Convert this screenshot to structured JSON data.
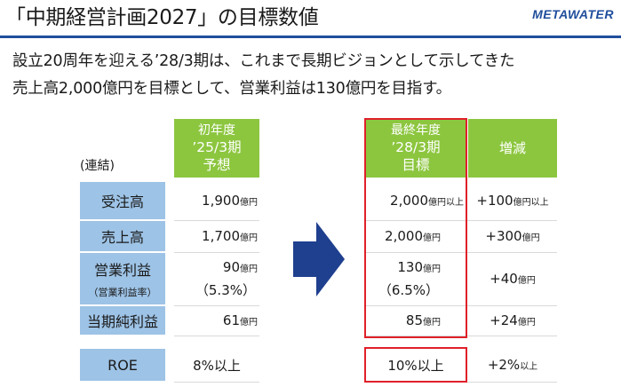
{
  "header": {
    "title": "「中期経営計画2027」の目標数値",
    "logo_text": "METAWATER",
    "rule_color": "#1f4e9c"
  },
  "lead": {
    "line1": "設立20周年を迎える’28/3期は、これまで長期ビジョンとして示してきた",
    "line2": "売上高2,000億円を目標として、営業利益は130億円を目指す。"
  },
  "table": {
    "consolidated_label": "(連結)",
    "col_initial": {
      "line1": "初年度",
      "line2": "’25/3期",
      "line3": "予想"
    },
    "col_final": {
      "line1": "最終年度",
      "line2": "’28/3期",
      "line3": "目標"
    },
    "col_change": "増減",
    "rows": [
      {
        "label": "受注高",
        "initial": "1,900",
        "initial_unit": "億円",
        "final": "2,000",
        "final_unit": "億円以上",
        "change": "+100",
        "change_unit": "億円以上"
      },
      {
        "label": "売上高",
        "initial": "1,700",
        "initial_unit": "億円",
        "final": "2,000",
        "final_unit": "億円",
        "change": "+300",
        "change_unit": "億円"
      },
      {
        "label": "営業利益",
        "sublabel": "（営業利益率）",
        "initial": "90",
        "initial_unit": "億円",
        "initial_ratio": "（5.3%）",
        "final": "130",
        "final_unit": "億円",
        "final_ratio": "（6.5%）",
        "change": "+40",
        "change_unit": "億円"
      },
      {
        "label": "当期純利益",
        "initial": "61",
        "initial_unit": "億円",
        "final": "85",
        "final_unit": "億円",
        "change": "+24",
        "change_unit": "億円"
      }
    ],
    "roe": {
      "label": "ROE",
      "initial": "8%以上",
      "final": "10%以上",
      "change": "+2%",
      "change_unit": "以上"
    }
  },
  "colors": {
    "green": "#8cc63f",
    "blue_label": "#9dc3e6",
    "arrow": "#1f3f8f",
    "highlight": "#e0202a"
  }
}
